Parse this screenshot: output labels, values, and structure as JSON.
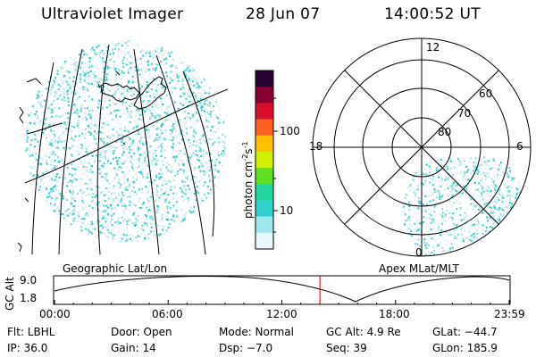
{
  "header": {
    "instrument": "Ultraviolet Imager",
    "date": "28 Jun 07",
    "time": "14:00:52 UT"
  },
  "colorbar": {
    "label_units": "photon cm",
    "label_exp1": "-2",
    "label_s": "s",
    "label_exp2": "-1",
    "ticks": [
      {
        "value": "100"
      },
      {
        "value": "10"
      }
    ],
    "colors": [
      "#2a0033",
      "#8a0030",
      "#d8102a",
      "#ff6020",
      "#ffc000",
      "#d0f000",
      "#60e020",
      "#20d8a0",
      "#30d0d0",
      "#a0e8f0",
      "#e8f8ff"
    ]
  },
  "geo_panel": {
    "label": "Geographic Lat/Lon"
  },
  "apex_panel": {
    "label": "Apex  MLat/MLT",
    "mlt_labels": {
      "top": "12",
      "left": "18",
      "right": "6",
      "bottom": "0"
    },
    "lat_labels": [
      {
        "value": "60"
      },
      {
        "value": "70"
      },
      {
        "value": "80"
      }
    ]
  },
  "orbit_plot": {
    "ylabel": "GC Alt",
    "ytick_top": "9.0",
    "ytick_bottom": "1.8",
    "xticks": [
      "00:00",
      "06:00",
      "12:00",
      "18:00",
      "23:59"
    ],
    "marker_time_hours": 14.01
  },
  "info": {
    "row1": {
      "filter": "Flt: LBHL",
      "door": "Door: Open",
      "mode": "Mode: Normal",
      "gc_alt": "GC Alt: 4.9 Re",
      "glat": "GLat: −44.7"
    },
    "row2": {
      "ip": "IP: 36.0",
      "gain": "Gain: 14",
      "dsp": "Dsp:   −7.0",
      "seq": "Seq: 39",
      "glon": "GLon: 185.9"
    }
  }
}
